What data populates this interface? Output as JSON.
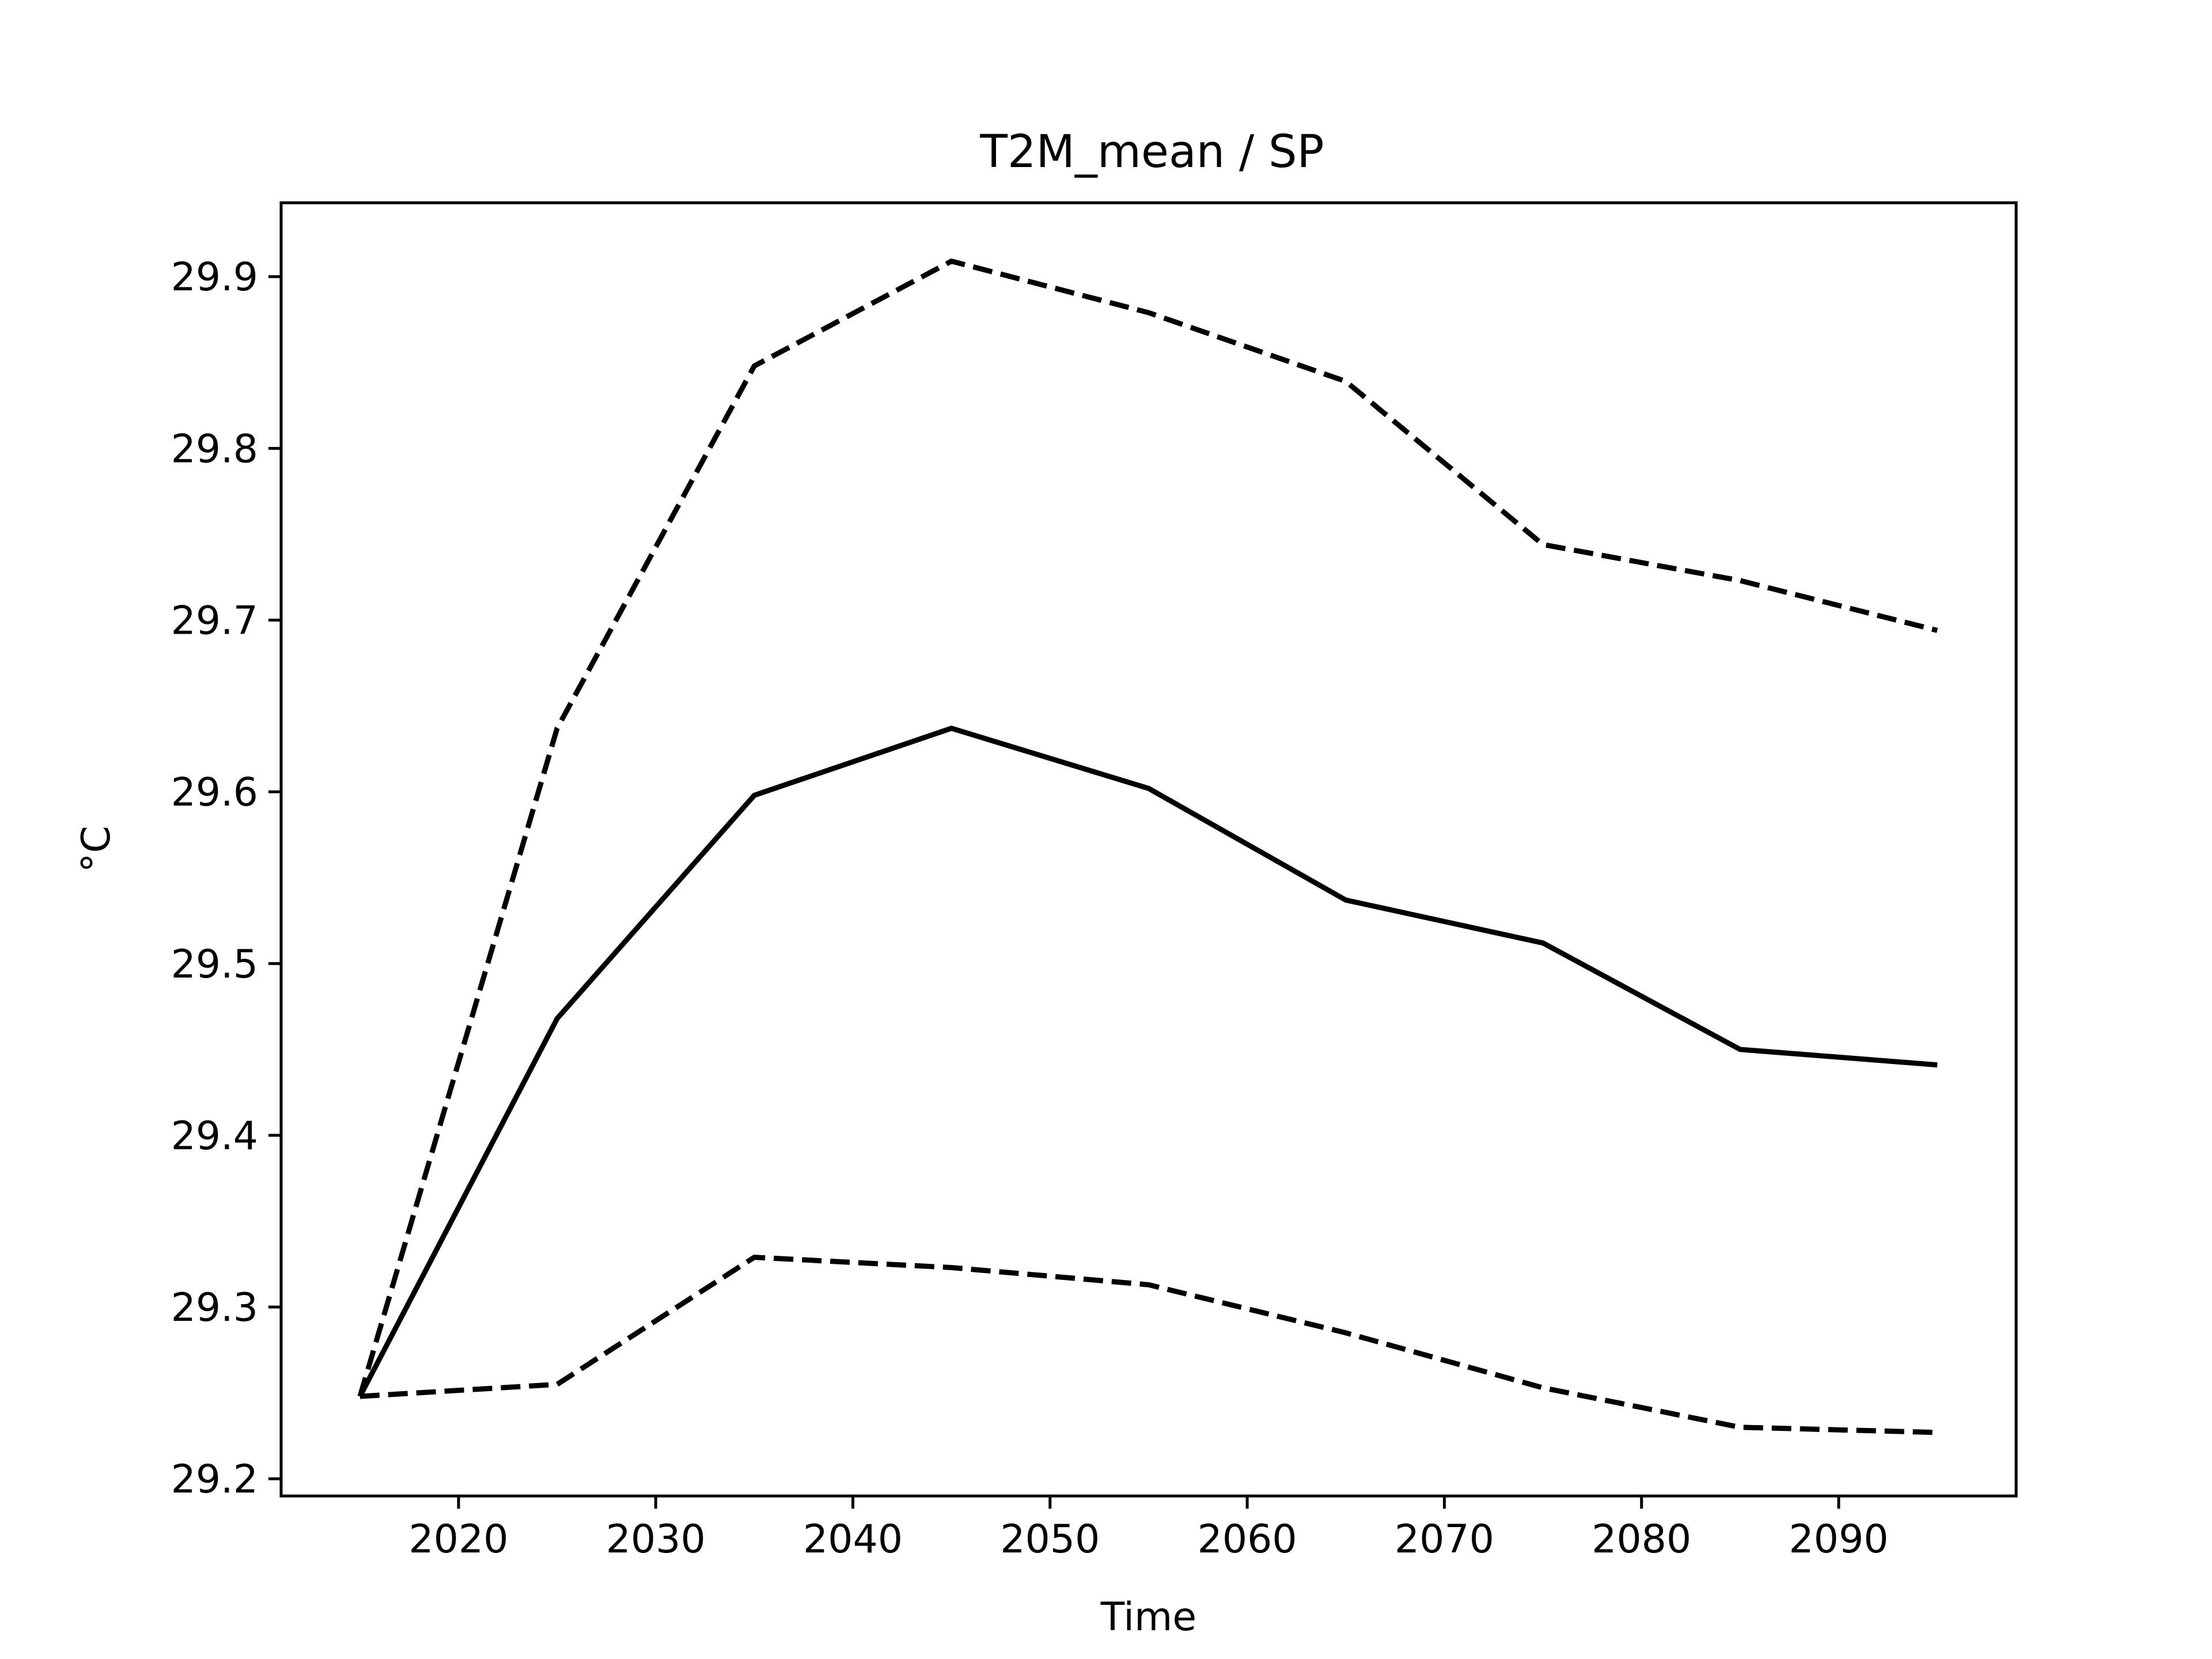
{
  "chart_data": {
    "type": "line",
    "title": "T2M_mean / SP",
    "xlabel": "Time",
    "ylabel": "°C",
    "xlim": [
      2011,
      2099
    ],
    "ylim": [
      29.19,
      29.943
    ],
    "xticks": [
      2020,
      2030,
      2040,
      2050,
      2060,
      2070,
      2080,
      2090
    ],
    "yticks": [
      29.2,
      29.3,
      29.4,
      29.5,
      29.6,
      29.7,
      29.8,
      29.9
    ],
    "ytick_labels": [
      "29.2",
      "29.3",
      "29.4",
      "29.5",
      "29.6",
      "29.7",
      "29.8",
      "29.9"
    ],
    "grid": false,
    "x": [
      2015,
      2025,
      2035,
      2045,
      2055,
      2065,
      2075,
      2085,
      2095
    ],
    "series": [
      {
        "style": "dashed",
        "color": "#000000",
        "values": [
          29.248,
          29.637,
          29.848,
          29.909,
          29.879,
          29.839,
          29.744,
          29.723,
          29.694
        ]
      },
      {
        "style": "solid",
        "color": "#000000",
        "values": [
          29.248,
          29.468,
          29.598,
          29.637,
          29.602,
          29.537,
          29.512,
          29.45,
          29.441
        ]
      },
      {
        "style": "dashed",
        "color": "#000000",
        "values": [
          29.248,
          29.255,
          29.329,
          29.323,
          29.313,
          29.285,
          29.253,
          29.23,
          29.227
        ]
      }
    ]
  }
}
